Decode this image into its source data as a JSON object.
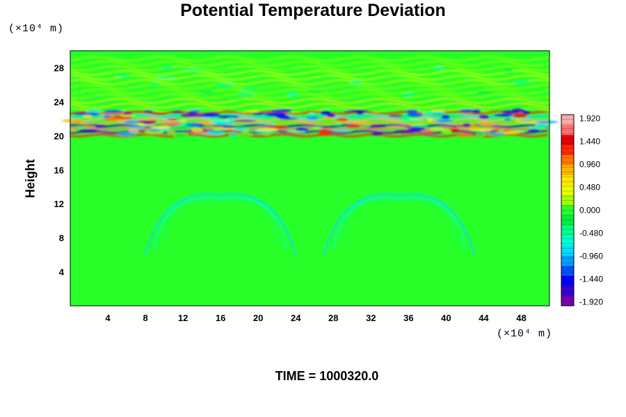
{
  "chart_data": {
    "type": "heatmap",
    "title": "Potential Temperature Deviation",
    "ylabel": "Height",
    "x_unit_label": "(×10⁴ m)",
    "y_unit_label": "(×10⁴ m)",
    "footer": "TIME = 1000320.0",
    "xlim": [
      0,
      51
    ],
    "ylim": [
      0,
      30
    ],
    "x_ticks": [
      "4",
      "8",
      "12",
      "16",
      "20",
      "24",
      "28",
      "32",
      "36",
      "40",
      "44",
      "48"
    ],
    "y_ticks": [
      "4",
      "8",
      "12",
      "16",
      "20",
      "24",
      "28"
    ],
    "colorbar": {
      "range": [
        -2.0,
        2.0
      ],
      "labels": [
        "1.920",
        "1.440",
        "0.960",
        "0.480",
        "0.000",
        "-0.480",
        "-0.960",
        "-1.440",
        "-1.920"
      ],
      "colors": [
        "#7a00b4",
        "#3c00d2",
        "#0000ff",
        "#0050ff",
        "#00a0ff",
        "#00dcff",
        "#00ffd2",
        "#00ff8c",
        "#00f03c",
        "#28ff28",
        "#a0ff00",
        "#e6ff00",
        "#ffe600",
        "#ffb400",
        "#ff7800",
        "#ff2800",
        "#e60000",
        "#ff6e6e",
        "#ffaaaa"
      ]
    },
    "field_features": [
      {
        "feature": "background",
        "value": 0.0
      },
      {
        "feature": "oscillating band",
        "y_range": [
          20,
          23
        ],
        "value_range": [
          -1.92,
          1.92
        ]
      },
      {
        "feature": "upper wave ripples",
        "y_range": [
          23,
          30
        ],
        "value_range": [
          0.0,
          0.6
        ]
      },
      {
        "feature": "lower arches",
        "x_centers": [
          16,
          35
        ],
        "y_range": [
          6,
          13
        ],
        "value_range": [
          -0.8,
          0.0
        ]
      }
    ]
  }
}
